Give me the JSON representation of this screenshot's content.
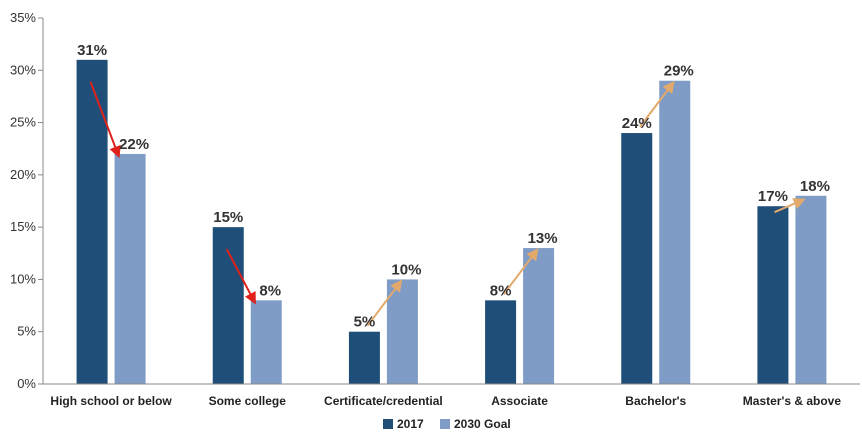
{
  "chart_data": {
    "type": "bar",
    "categories": [
      "High school or below",
      "Some college",
      "Certificate/credential",
      "Associate",
      "Bachelor's",
      "Master's & above"
    ],
    "series": [
      {
        "name": "2017",
        "values": [
          31,
          15,
          5,
          8,
          24,
          17
        ],
        "labels": [
          "31%",
          "15%",
          "5%",
          "8%",
          "24%",
          "17%"
        ],
        "color": "#1f4e79"
      },
      {
        "name": "2030 Goal",
        "values": [
          22,
          8,
          10,
          13,
          29,
          18
        ],
        "labels": [
          "22%",
          "8%",
          "10%",
          "13%",
          "29%",
          "18%"
        ],
        "color": "#7f9cc6"
      }
    ],
    "yticks": [
      "0%",
      "5%",
      "10%",
      "15%",
      "20%",
      "25%",
      "30%",
      "35%"
    ],
    "ylim": [
      0,
      35
    ],
    "grid": false,
    "legend": "bottom-center",
    "arrows": [
      {
        "category": "High school or below",
        "direction": "down",
        "color": "#e0201a"
      },
      {
        "category": "Some college",
        "direction": "down",
        "color": "#e0201a"
      },
      {
        "category": "Certificate/credential",
        "direction": "up",
        "color": "#e3a96b"
      },
      {
        "category": "Associate",
        "direction": "up",
        "color": "#e3a96b"
      },
      {
        "category": "Bachelor's",
        "direction": "up",
        "color": "#e3a96b"
      },
      {
        "category": "Master's & above",
        "direction": "up",
        "color": "#e3a96b"
      }
    ],
    "colors": {
      "axis": "#888888",
      "text": "#333333"
    }
  }
}
